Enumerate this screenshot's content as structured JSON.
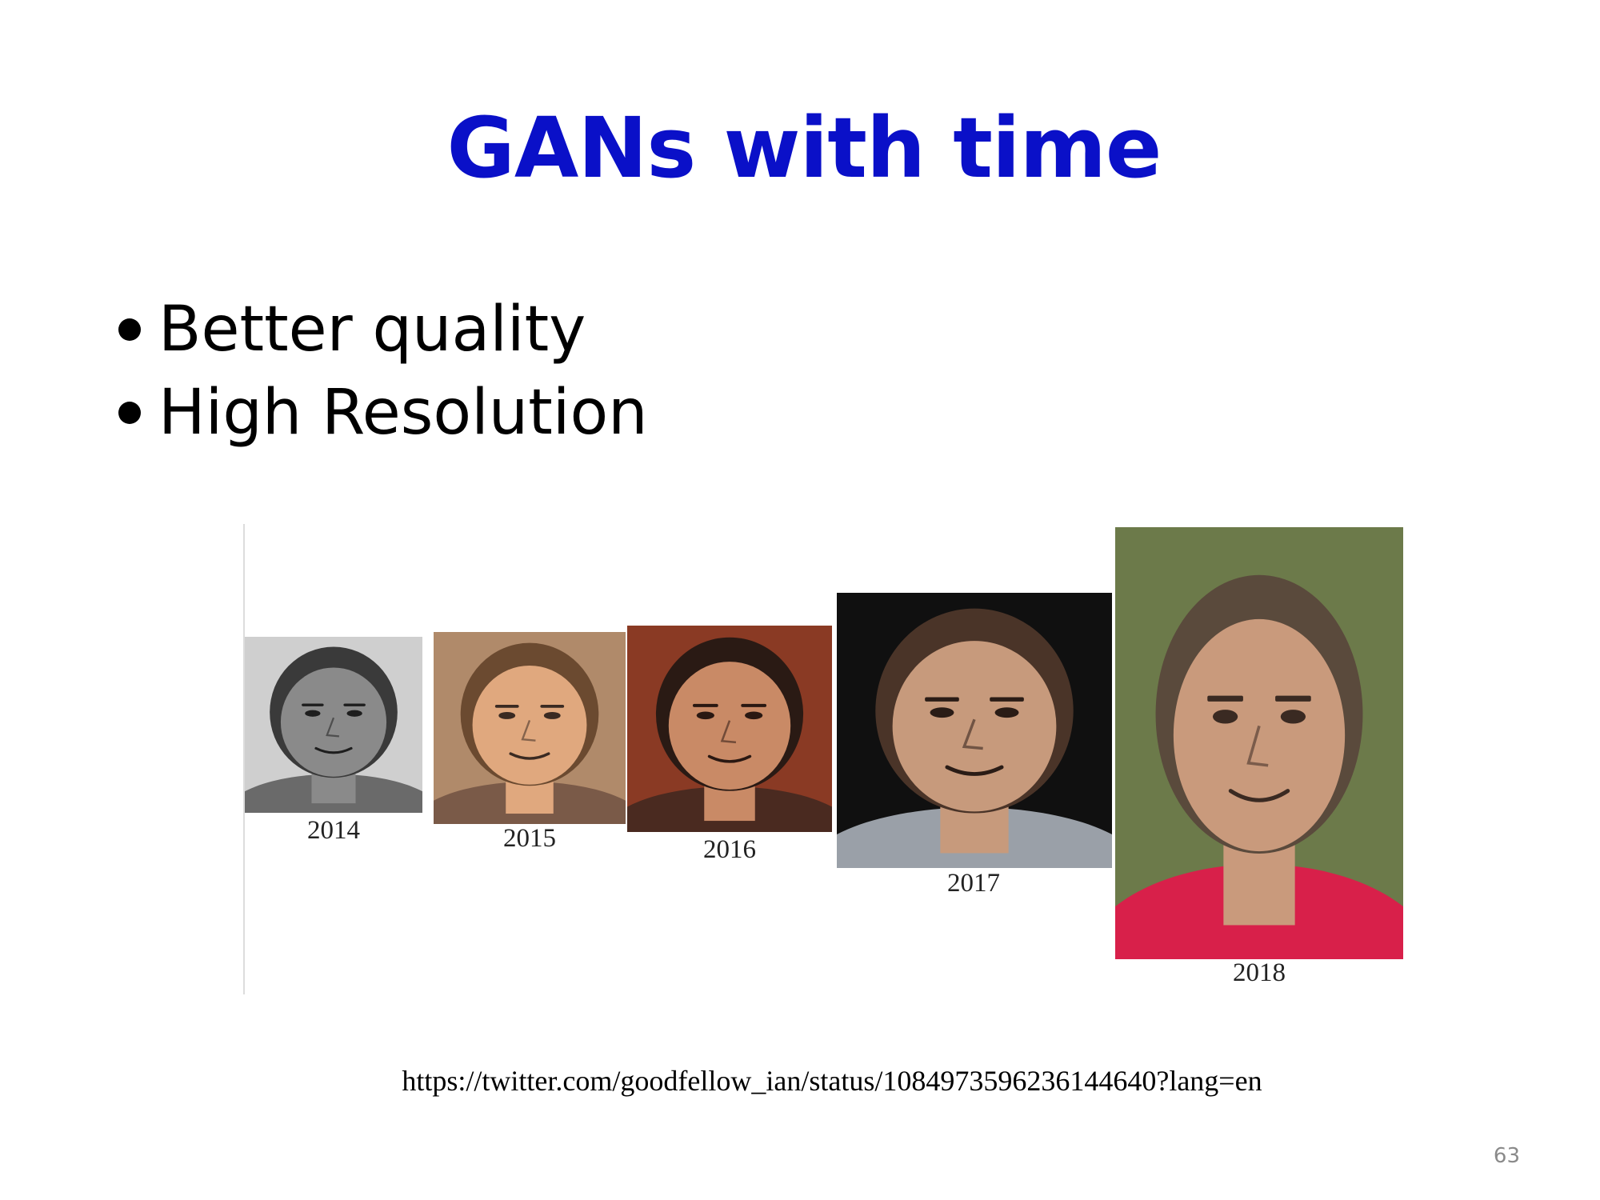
{
  "slide": {
    "title": "GANs with time",
    "bullets": [
      {
        "text": "Better quality"
      },
      {
        "text": "High Resolution"
      }
    ],
    "figure": {
      "faces": [
        {
          "year": "2014",
          "palette": {
            "bg": "#cfcfcf",
            "skin": "#8a8a8a",
            "hair": "#3a3a3a",
            "feature": "#1e1e1e",
            "cloth": "#6a6a6a"
          }
        },
        {
          "year": "2015",
          "palette": {
            "bg": "#b08a6a",
            "skin": "#e0a87e",
            "hair": "#6b4a30",
            "feature": "#3a2a22",
            "cloth": "#7a5a48"
          }
        },
        {
          "year": "2016",
          "palette": {
            "bg": "#8a3a24",
            "skin": "#c98a66",
            "hair": "#2a1a14",
            "feature": "#2a1812",
            "cloth": "#4a2a20"
          }
        },
        {
          "year": "2017",
          "palette": {
            "bg": "#101010",
            "skin": "#c79a7c",
            "hair": "#4a3428",
            "feature": "#2a1c16",
            "cloth": "#9aa0a8"
          }
        },
        {
          "year": "2018",
          "palette": {
            "bg": "#6c7a4a",
            "skin": "#c99a7c",
            "hair": "#5a4a3c",
            "feature": "#3a2a22",
            "cloth": "#d8204a"
          }
        }
      ]
    },
    "source_url": "https://twitter.com/goodfellow_ian/status/1084973596236144640?lang=en",
    "page_number": "63"
  }
}
